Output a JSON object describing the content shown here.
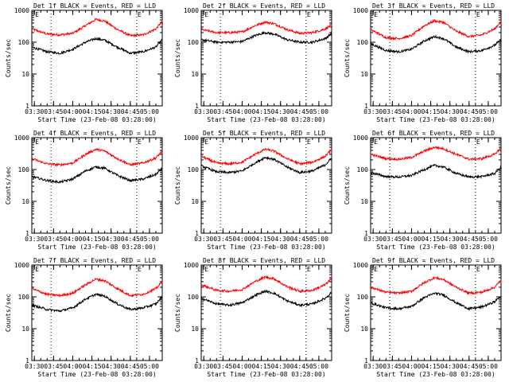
{
  "figure": {
    "background": "#ffffff"
  },
  "chart_data": [
    {
      "type": "line",
      "title": "Det 1f BLACK = Events, RED = LLD",
      "xlabel": "Start Time (23-Feb-08 03:28:00)",
      "ylabel": "Counts/sec",
      "x_ticks": [
        "03:30",
        "03:45",
        "04:00",
        "04:15",
        "04:30",
        "04:45",
        "05:00"
      ],
      "y_ticks": [
        "1",
        "10",
        "100",
        "1000"
      ],
      "y_scale": "log",
      "ylim": [
        1,
        1000
      ],
      "xlim": [
        "03:28",
        "05:10"
      ],
      "vertical_dotted_lines": [
        "03:43",
        "04:50"
      ],
      "markers": [
        {
          "label": "E",
          "x": "03:30"
        },
        {
          "label": "E",
          "x": "04:50"
        }
      ],
      "series": [
        {
          "name": "LLD",
          "color": "#ff0000",
          "x": [
            "03:28",
            "03:40",
            "03:50",
            "04:00",
            "04:10",
            "04:18",
            "04:25",
            "04:35",
            "04:45",
            "04:55",
            "05:05",
            "05:10"
          ],
          "values": [
            260,
            180,
            170,
            190,
            330,
            520,
            460,
            250,
            160,
            170,
            260,
            450
          ]
        },
        {
          "name": "Events",
          "color": "#000000",
          "x": [
            "03:28",
            "03:40",
            "03:50",
            "04:00",
            "04:10",
            "04:18",
            "04:25",
            "04:35",
            "04:45",
            "04:55",
            "05:05",
            "05:10"
          ],
          "values": [
            70,
            50,
            45,
            60,
            100,
            130,
            115,
            70,
            45,
            50,
            70,
            120
          ]
        }
      ]
    },
    {
      "type": "line",
      "title": "Det 2f BLACK = Events, RED = LLD",
      "xlabel": "Start Time (23-Feb-08 03:28:00)",
      "ylabel": "Counts/sec",
      "x_ticks": [
        "03:30",
        "03:45",
        "04:00",
        "04:15",
        "04:30",
        "04:45",
        "05:00"
      ],
      "y_ticks": [
        "1",
        "10",
        "100",
        "1000"
      ],
      "y_scale": "log",
      "ylim": [
        1,
        1000
      ],
      "xlim": [
        "03:28",
        "05:10"
      ],
      "vertical_dotted_lines": [
        "03:43",
        "04:50"
      ],
      "markers": [
        {
          "label": "E",
          "x": "03:30"
        },
        {
          "label": "E",
          "x": "04:50"
        }
      ],
      "series": [
        {
          "name": "LLD",
          "color": "#ff0000",
          "x": [
            "03:28",
            "03:40",
            "03:50",
            "04:00",
            "04:10",
            "04:18",
            "04:25",
            "04:35",
            "04:45",
            "04:55",
            "05:05",
            "05:10"
          ],
          "values": [
            250,
            200,
            200,
            210,
            330,
            430,
            380,
            250,
            190,
            200,
            260,
            350
          ]
        },
        {
          "name": "Events",
          "color": "#000000",
          "x": [
            "03:28",
            "03:40",
            "03:50",
            "04:00",
            "04:10",
            "04:18",
            "04:25",
            "04:35",
            "04:45",
            "04:55",
            "05:05",
            "05:10"
          ],
          "values": [
            120,
            100,
            100,
            105,
            160,
            200,
            180,
            120,
            100,
            100,
            130,
            190
          ]
        }
      ]
    },
    {
      "type": "line",
      "title": "Det 3f BLACK = Events, RED = LLD",
      "xlabel": "Start Time (23-Feb-08 03:28:00)",
      "ylabel": "Counts/sec",
      "x_ticks": [
        "03:30",
        "03:45",
        "04:00",
        "04:15",
        "04:30",
        "04:45",
        "05:00"
      ],
      "y_ticks": [
        "1",
        "10",
        "100",
        "1000"
      ],
      "y_scale": "log",
      "ylim": [
        1,
        1000
      ],
      "xlim": [
        "03:28",
        "05:10"
      ],
      "vertical_dotted_lines": [
        "03:43",
        "04:50"
      ],
      "markers": [
        {
          "label": "E",
          "x": "03:30"
        },
        {
          "label": "E",
          "x": "04:50"
        }
      ],
      "series": [
        {
          "name": "LLD",
          "color": "#ff0000",
          "x": [
            "03:28",
            "03:40",
            "03:50",
            "04:00",
            "04:10",
            "04:18",
            "04:25",
            "04:35",
            "04:45",
            "04:55",
            "05:05",
            "05:10"
          ],
          "values": [
            250,
            140,
            130,
            160,
            330,
            470,
            420,
            220,
            150,
            170,
            260,
            450
          ]
        },
        {
          "name": "Events",
          "color": "#000000",
          "x": [
            "03:28",
            "03:40",
            "03:50",
            "04:00",
            "04:10",
            "04:18",
            "04:25",
            "04:35",
            "04:45",
            "04:55",
            "05:05",
            "05:10"
          ],
          "values": [
            90,
            55,
            50,
            60,
            110,
            150,
            130,
            70,
            50,
            55,
            80,
            120
          ]
        }
      ]
    },
    {
      "type": "line",
      "title": "Det 4f BLACK = Events, RED = LLD",
      "xlabel": "Start Time (23-Feb-08 03:28:00)",
      "ylabel": "Counts/sec",
      "x_ticks": [
        "03:30",
        "03:45",
        "04:00",
        "04:15",
        "04:30",
        "04:45",
        "05:00"
      ],
      "y_ticks": [
        "1",
        "10",
        "100",
        "1000"
      ],
      "y_scale": "log",
      "ylim": [
        1,
        1000
      ],
      "xlim": [
        "03:28",
        "05:10"
      ],
      "vertical_dotted_lines": [
        "03:43",
        "04:50"
      ],
      "markers": [
        {
          "label": "E",
          "x": "03:30"
        },
        {
          "label": "E",
          "x": "04:50"
        }
      ],
      "series": [
        {
          "name": "LLD",
          "color": "#ff0000",
          "x": [
            "03:28",
            "03:40",
            "03:50",
            "04:00",
            "04:10",
            "04:18",
            "04:25",
            "04:35",
            "04:45",
            "04:55",
            "05:05",
            "05:10"
          ],
          "values": [
            220,
            150,
            140,
            160,
            300,
            430,
            380,
            220,
            140,
            160,
            230,
            380
          ]
        },
        {
          "name": "Events",
          "color": "#000000",
          "x": [
            "03:28",
            "03:40",
            "03:50",
            "04:00",
            "04:10",
            "04:18",
            "04:25",
            "04:35",
            "04:45",
            "04:55",
            "05:05",
            "05:10"
          ],
          "values": [
            60,
            45,
            40,
            50,
            90,
            120,
            110,
            65,
            45,
            50,
            70,
            110
          ]
        }
      ]
    },
    {
      "type": "line",
      "title": "Det 5f BLACK = Events, RED = LLD",
      "xlabel": "Start Time (23-Feb-08 03:28:00)",
      "ylabel": "Counts/sec",
      "x_ticks": [
        "03:30",
        "03:45",
        "04:00",
        "04:15",
        "04:30",
        "04:45",
        "05:00"
      ],
      "y_ticks": [
        "1",
        "10",
        "100",
        "1000"
      ],
      "y_scale": "log",
      "ylim": [
        1,
        1000
      ],
      "xlim": [
        "03:28",
        "05:10"
      ],
      "vertical_dotted_lines": [
        "03:43",
        "04:50"
      ],
      "markers": [
        {
          "label": "E",
          "x": "03:30"
        },
        {
          "label": "E",
          "x": "04:50"
        }
      ],
      "series": [
        {
          "name": "LLD",
          "color": "#ff0000",
          "x": [
            "03:28",
            "03:40",
            "03:50",
            "04:00",
            "04:10",
            "04:18",
            "04:25",
            "04:35",
            "04:45",
            "04:55",
            "05:05",
            "05:10"
          ],
          "values": [
            260,
            160,
            150,
            170,
            300,
            430,
            380,
            220,
            150,
            170,
            260,
            420
          ]
        },
        {
          "name": "Events",
          "color": "#000000",
          "x": [
            "03:28",
            "03:40",
            "03:50",
            "04:00",
            "04:10",
            "04:18",
            "04:25",
            "04:35",
            "04:45",
            "04:55",
            "05:05",
            "05:10"
          ],
          "values": [
            130,
            85,
            80,
            90,
            160,
            240,
            210,
            120,
            80,
            90,
            140,
            230
          ]
        }
      ]
    },
    {
      "type": "line",
      "title": "Det 6f BLACK = Events, RED = LLD",
      "xlabel": "Start Time (23-Feb-08 03:28:00)",
      "ylabel": "Counts/sec",
      "x_ticks": [
        "03:30",
        "03:45",
        "04:00",
        "04:15",
        "04:30",
        "04:45",
        "05:00"
      ],
      "y_ticks": [
        "1",
        "10",
        "100",
        "1000"
      ],
      "y_scale": "log",
      "ylim": [
        1,
        1000
      ],
      "xlim": [
        "03:28",
        "05:10"
      ],
      "vertical_dotted_lines": [
        "03:43",
        "04:50"
      ],
      "markers": [
        {
          "label": "E",
          "x": "03:30"
        },
        {
          "label": "E",
          "x": "04:50"
        }
      ],
      "series": [
        {
          "name": "LLD",
          "color": "#ff0000",
          "x": [
            "03:28",
            "03:40",
            "03:50",
            "04:00",
            "04:10",
            "04:18",
            "04:25",
            "04:35",
            "04:45",
            "04:55",
            "05:05",
            "05:10"
          ],
          "values": [
            300,
            220,
            210,
            240,
            380,
            500,
            450,
            300,
            210,
            220,
            300,
            480
          ]
        },
        {
          "name": "Events",
          "color": "#000000",
          "x": [
            "03:28",
            "03:40",
            "03:50",
            "04:00",
            "04:10",
            "04:18",
            "04:25",
            "04:35",
            "04:45",
            "04:55",
            "05:05",
            "05:10"
          ],
          "values": [
            80,
            60,
            58,
            65,
            100,
            135,
            120,
            75,
            58,
            60,
            75,
            120
          ]
        }
      ]
    },
    {
      "type": "line",
      "title": "Det 7f BLACK = Events, RED = LLD",
      "xlabel": "Start Time (23-Feb-08 03:28:00)",
      "ylabel": "Counts/sec",
      "x_ticks": [
        "03:30",
        "03:45",
        "04:00",
        "04:15",
        "04:30",
        "04:45",
        "05:00"
      ],
      "y_ticks": [
        "1",
        "10",
        "100",
        "1000"
      ],
      "y_scale": "log",
      "ylim": [
        1,
        1000
      ],
      "xlim": [
        "03:28",
        "05:10"
      ],
      "vertical_dotted_lines": [
        "03:43",
        "04:50"
      ],
      "markers": [
        {
          "label": "E",
          "x": "03:30"
        },
        {
          "label": "E",
          "x": "04:50"
        }
      ],
      "series": [
        {
          "name": "LLD",
          "color": "#ff0000",
          "x": [
            "03:28",
            "03:40",
            "03:50",
            "04:00",
            "04:10",
            "04:18",
            "04:25",
            "04:35",
            "04:45",
            "04:55",
            "05:05",
            "05:10"
          ],
          "values": [
            180,
            120,
            110,
            130,
            240,
            360,
            320,
            180,
            110,
            120,
            180,
            300
          ]
        },
        {
          "name": "Events",
          "color": "#000000",
          "x": [
            "03:28",
            "03:40",
            "03:50",
            "04:00",
            "04:10",
            "04:18",
            "04:25",
            "04:35",
            "04:45",
            "04:55",
            "05:05",
            "05:10"
          ],
          "values": [
            55,
            40,
            36,
            45,
            85,
            120,
            105,
            60,
            40,
            45,
            60,
            100
          ]
        }
      ]
    },
    {
      "type": "line",
      "title": "Det 8f BLACK = Events, RED = LLD",
      "xlabel": "Start Time (23-Feb-08 03:28:00)",
      "ylabel": "Counts/sec",
      "x_ticks": [
        "03:30",
        "03:45",
        "04:00",
        "04:15",
        "04:30",
        "04:45",
        "05:00"
      ],
      "y_ticks": [
        "1",
        "10",
        "100",
        "1000"
      ],
      "y_scale": "log",
      "ylim": [
        1,
        1000
      ],
      "xlim": [
        "03:28",
        "05:10"
      ],
      "vertical_dotted_lines": [
        "03:43",
        "04:50"
      ],
      "markers": [
        {
          "label": "E",
          "x": "03:30"
        },
        {
          "label": "E",
          "x": "04:50"
        }
      ],
      "series": [
        {
          "name": "LLD",
          "color": "#ff0000",
          "x": [
            "03:28",
            "03:40",
            "03:50",
            "04:00",
            "04:10",
            "04:18",
            "04:25",
            "04:35",
            "04:45",
            "04:55",
            "05:05",
            "05:10"
          ],
          "values": [
            240,
            160,
            150,
            170,
            300,
            420,
            370,
            210,
            150,
            160,
            240,
            380
          ]
        },
        {
          "name": "Events",
          "color": "#000000",
          "x": [
            "03:28",
            "03:40",
            "03:50",
            "04:00",
            "04:10",
            "04:18",
            "04:25",
            "04:35",
            "04:45",
            "04:55",
            "05:05",
            "05:10"
          ],
          "values": [
            90,
            60,
            55,
            65,
            110,
            150,
            130,
            75,
            55,
            60,
            90,
            140
          ]
        }
      ]
    },
    {
      "type": "line",
      "title": "Det 9f BLACK = Events, RED = LLD",
      "xlabel": "Start Time (23-Feb-08 03:28:00)",
      "ylabel": "Counts/sec",
      "x_ticks": [
        "03:30",
        "03:45",
        "04:00",
        "04:15",
        "04:30",
        "04:45",
        "05:00"
      ],
      "y_ticks": [
        "1",
        "10",
        "100",
        "1000"
      ],
      "y_scale": "log",
      "ylim": [
        1,
        1000
      ],
      "xlim": [
        "03:28",
        "05:10"
      ],
      "vertical_dotted_lines": [
        "03:43",
        "04:50"
      ],
      "markers": [
        {
          "label": "E",
          "x": "03:30"
        },
        {
          "label": "E",
          "x": "04:50"
        }
      ],
      "series": [
        {
          "name": "LLD",
          "color": "#ff0000",
          "x": [
            "03:28",
            "03:40",
            "03:50",
            "04:00",
            "04:10",
            "04:18",
            "04:25",
            "04:35",
            "04:45",
            "04:55",
            "05:05",
            "05:10"
          ],
          "values": [
            200,
            140,
            130,
            150,
            280,
            400,
            350,
            200,
            130,
            140,
            200,
            330
          ]
        },
        {
          "name": "Events",
          "color": "#000000",
          "x": [
            "03:28",
            "03:40",
            "03:50",
            "04:00",
            "04:10",
            "04:18",
            "04:25",
            "04:35",
            "04:45",
            "04:55",
            "05:05",
            "05:10"
          ],
          "values": [
            65,
            45,
            42,
            50,
            95,
            130,
            115,
            65,
            42,
            48,
            70,
            110
          ]
        }
      ]
    }
  ]
}
